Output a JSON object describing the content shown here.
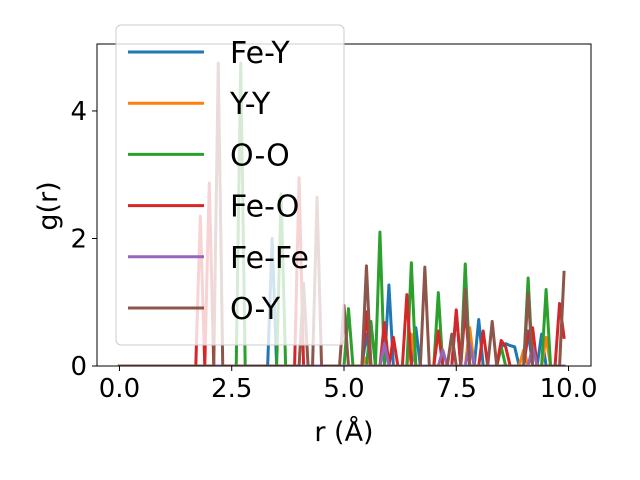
{
  "chart_data": {
    "type": "line",
    "xlabel": "r (Å)",
    "ylabel": "g(r)",
    "xlim": [
      -0.5,
      10.5
    ],
    "ylim": [
      0,
      5.05
    ],
    "xticks": [
      0.0,
      2.5,
      5.0,
      7.5,
      10.0
    ],
    "xtick_labels": [
      "0.0",
      "2.5",
      "5.0",
      "7.5",
      "10.0"
    ],
    "yticks": [
      0,
      2,
      4
    ],
    "ytick_labels": [
      "0",
      "2",
      "4"
    ],
    "grid": false,
    "legend_position": "top-left",
    "x": [
      0.0,
      0.1,
      0.2,
      0.3,
      0.4,
      0.5,
      0.6,
      0.7,
      0.8,
      0.9,
      1.0,
      1.1,
      1.2,
      1.3,
      1.4,
      1.5,
      1.6,
      1.7,
      1.8,
      1.9,
      2.0,
      2.1,
      2.2,
      2.3,
      2.4,
      2.5,
      2.6,
      2.7,
      2.8,
      2.9,
      3.0,
      3.1,
      3.2,
      3.3,
      3.4,
      3.5,
      3.6,
      3.7,
      3.8,
      3.9,
      4.0,
      4.1,
      4.2,
      4.3,
      4.4,
      4.5,
      4.6,
      4.7,
      4.8,
      4.9,
      5.0,
      5.1,
      5.2,
      5.3,
      5.4,
      5.5,
      5.6,
      5.7,
      5.8,
      5.9,
      6.0,
      6.1,
      6.2,
      6.3,
      6.4,
      6.5,
      6.6,
      6.7,
      6.8,
      6.9,
      7.0,
      7.1,
      7.2,
      7.3,
      7.4,
      7.5,
      7.6,
      7.7,
      7.8,
      7.9,
      8.0,
      8.1,
      8.2,
      8.3,
      8.4,
      8.5,
      8.6,
      8.7,
      8.8,
      8.9,
      9.0,
      9.1,
      9.2,
      9.3,
      9.4,
      9.5,
      9.6,
      9.7,
      9.8,
      9.9
    ],
    "series": [
      {
        "name": "Fe-Y",
        "color": "#1f77b4",
        "values": [
          0,
          0,
          0,
          0,
          0,
          0,
          0,
          0,
          0,
          0,
          0,
          0,
          0,
          0,
          0,
          0,
          0,
          0,
          0,
          0,
          0,
          0,
          0,
          0,
          0,
          0,
          0,
          0,
          0,
          0,
          0,
          0,
          0,
          0,
          2.0,
          0,
          0,
          0,
          0,
          0,
          0,
          0,
          0,
          0,
          0,
          0,
          0,
          0,
          0,
          0,
          0,
          0,
          0,
          0,
          0,
          0.5,
          0,
          0,
          0,
          0,
          1.27,
          0,
          0,
          0,
          0,
          0,
          0.6,
          0,
          0,
          0,
          0,
          0,
          0,
          0,
          0,
          0.85,
          0,
          0,
          0,
          0,
          0.73,
          0,
          0,
          0,
          0,
          0.3,
          0.35,
          0.32,
          0.3,
          0,
          0,
          0.55,
          0,
          0,
          0.5,
          0,
          0,
          0,
          0,
          0
        ]
      },
      {
        "name": "Y-Y",
        "color": "#ff7f0e",
        "values": [
          0,
          0,
          0,
          0,
          0,
          0,
          0,
          0,
          0,
          0,
          0,
          0,
          0,
          0,
          0,
          0,
          0,
          0,
          0,
          0,
          0,
          0,
          0,
          0,
          0,
          0,
          0,
          0,
          0,
          0,
          0,
          0,
          0,
          0,
          0,
          0,
          0,
          0,
          0,
          0,
          0,
          0,
          0,
          0,
          0,
          0,
          0,
          0,
          0,
          0,
          0,
          0,
          0,
          0,
          0,
          0.13,
          0,
          0,
          0,
          0,
          0,
          0,
          0,
          0,
          0,
          0.5,
          0,
          0,
          0,
          0,
          0,
          0,
          0,
          0,
          0,
          0,
          0,
          0,
          0.6,
          0,
          0,
          0,
          0,
          0,
          0,
          0,
          0,
          0,
          0,
          0,
          0.25,
          0,
          0,
          0,
          0,
          0.45,
          0,
          0,
          0,
          0
        ]
      },
      {
        "name": "O-O",
        "color": "#2ca02c",
        "values": [
          0,
          0,
          0,
          0,
          0,
          0,
          0,
          0,
          0,
          0,
          0,
          0,
          0,
          0,
          0,
          0,
          0,
          0,
          0,
          0,
          0,
          0,
          0,
          0,
          0,
          0,
          0,
          4.75,
          0,
          0,
          0,
          0,
          0,
          0,
          0,
          0,
          2.7,
          0,
          0,
          0,
          0,
          0,
          0,
          0,
          0,
          0,
          0,
          0,
          0,
          0,
          0,
          0.9,
          0,
          0,
          0,
          0,
          0.7,
          0,
          2.1,
          0,
          0,
          0,
          0,
          0,
          0,
          1.62,
          0,
          0,
          0,
          0,
          0,
          1.15,
          0,
          0,
          0,
          0,
          0,
          1.6,
          0,
          0,
          0,
          0,
          0,
          0,
          0,
          0.3,
          0,
          0,
          0,
          0,
          0,
          1.38,
          0,
          0,
          0,
          1.2,
          0,
          0,
          0,
          0
        ]
      },
      {
        "name": "Fe-O",
        "color": "#d62728",
        "values": [
          0,
          0,
          0,
          0,
          0,
          0,
          0,
          0,
          0,
          0,
          0,
          0,
          0,
          0,
          0,
          0,
          0,
          0,
          2.35,
          0,
          2.87,
          0,
          0,
          0,
          0,
          0,
          0,
          0,
          0,
          0,
          0,
          0,
          0,
          0,
          0,
          0,
          0,
          0,
          0,
          0,
          2.95,
          0,
          0,
          0,
          0,
          0,
          0,
          0,
          0,
          0,
          0,
          0,
          0,
          0,
          0,
          0.85,
          0,
          0,
          0,
          0.68,
          0,
          0.45,
          0,
          0,
          1.12,
          0,
          0,
          0,
          0,
          0,
          0,
          0.55,
          0,
          0,
          0,
          0.88,
          0,
          0.92,
          0,
          0,
          0,
          0.55,
          0,
          0,
          0,
          0.4,
          0.3,
          0,
          0,
          0,
          0,
          0.5,
          0.6,
          0,
          0,
          0,
          0,
          0,
          0.98,
          0.45
        ]
      },
      {
        "name": "Fe-Fe",
        "color": "#9467bd",
        "values": [
          0,
          0,
          0,
          0,
          0,
          0,
          0,
          0,
          0,
          0,
          0,
          0,
          0,
          0,
          0,
          0,
          0,
          0,
          0,
          0,
          0,
          0,
          0,
          0,
          0,
          0,
          0,
          0,
          0,
          0,
          0,
          0,
          0,
          0,
          0,
          0,
          0,
          0,
          0,
          0,
          0,
          0,
          0,
          0,
          0,
          0,
          0,
          0,
          0,
          0,
          0,
          0,
          0,
          0,
          0,
          0,
          0,
          0,
          0,
          0.35,
          0,
          0,
          0,
          0,
          0,
          0,
          0,
          0,
          0,
          0,
          0,
          0,
          0.25,
          0,
          0,
          0,
          0,
          0,
          0.35,
          0,
          0,
          0,
          0,
          0,
          0,
          0,
          0,
          0,
          0,
          0,
          0,
          0,
          0.3,
          0,
          0,
          0,
          0,
          0,
          0,
          0
        ]
      },
      {
        "name": "O-Y",
        "color": "#8c564b",
        "values": [
          0,
          0,
          0,
          0,
          0,
          0,
          0,
          0,
          0,
          0,
          0,
          0,
          0,
          0,
          0,
          0,
          0,
          0,
          0,
          0,
          0,
          0,
          4.75,
          0,
          0,
          0,
          0,
          0,
          0,
          0,
          0,
          0,
          0,
          0,
          0,
          0,
          0,
          0,
          0,
          0,
          0,
          1.3,
          0,
          0,
          2.65,
          0,
          0,
          0,
          0,
          0,
          0.95,
          0,
          0,
          0,
          0,
          1.57,
          0,
          0,
          0,
          0,
          0,
          0,
          0,
          0,
          0,
          0,
          0,
          0,
          1.55,
          0,
          0,
          0,
          0,
          0,
          0.5,
          0,
          0,
          1.2,
          0,
          0,
          0,
          0,
          0,
          0.7,
          0,
          0,
          0,
          0,
          0,
          0,
          0,
          1.15,
          0,
          0,
          0,
          0,
          0,
          0,
          0,
          1.47
        ]
      }
    ]
  }
}
